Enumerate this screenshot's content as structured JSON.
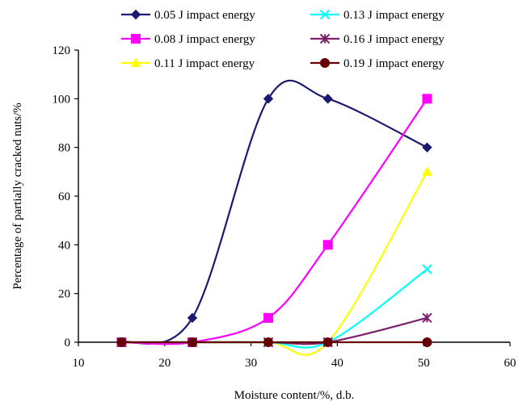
{
  "chart_data": {
    "type": "line",
    "title": "",
    "xlabel": "Moisture content/%, d.b.",
    "ylabel": "Percentage of partially cracked nuts/%",
    "xlim": [
      10,
      60
    ],
    "ylim": [
      0,
      120
    ],
    "xticks": [
      10,
      20,
      30,
      40,
      50,
      60
    ],
    "yticks": [
      0,
      20,
      40,
      60,
      80,
      100,
      120
    ],
    "x": [
      15,
      23.2,
      32,
      38.9,
      50.4
    ],
    "grid": false,
    "legend_position": "top",
    "series": [
      {
        "name": "0.05 J impact energy",
        "color": "#1a1a6e",
        "marker": "diamond",
        "values": [
          0,
          10,
          100,
          100,
          80
        ]
      },
      {
        "name": "0.08 J impact energy",
        "color": "#ff00ff",
        "marker": "square",
        "values": [
          0,
          0,
          10,
          40,
          100
        ]
      },
      {
        "name": "0.11 J impact energy",
        "color": "#ffff00",
        "marker": "triangle",
        "values": [
          0,
          0,
          0,
          0,
          70
        ]
      },
      {
        "name": "0.13 J impact energy",
        "color": "#00ffff",
        "marker": "x",
        "values": [
          0,
          0,
          0,
          0,
          30
        ]
      },
      {
        "name": "0.16 J impact energy",
        "color": "#7a1f6a",
        "marker": "star",
        "values": [
          0,
          0,
          0,
          0,
          10
        ]
      },
      {
        "name": "0.19 J impact energy",
        "color": "#660000",
        "marker": "circle",
        "values": [
          0,
          0,
          0,
          0,
          0
        ]
      }
    ]
  }
}
